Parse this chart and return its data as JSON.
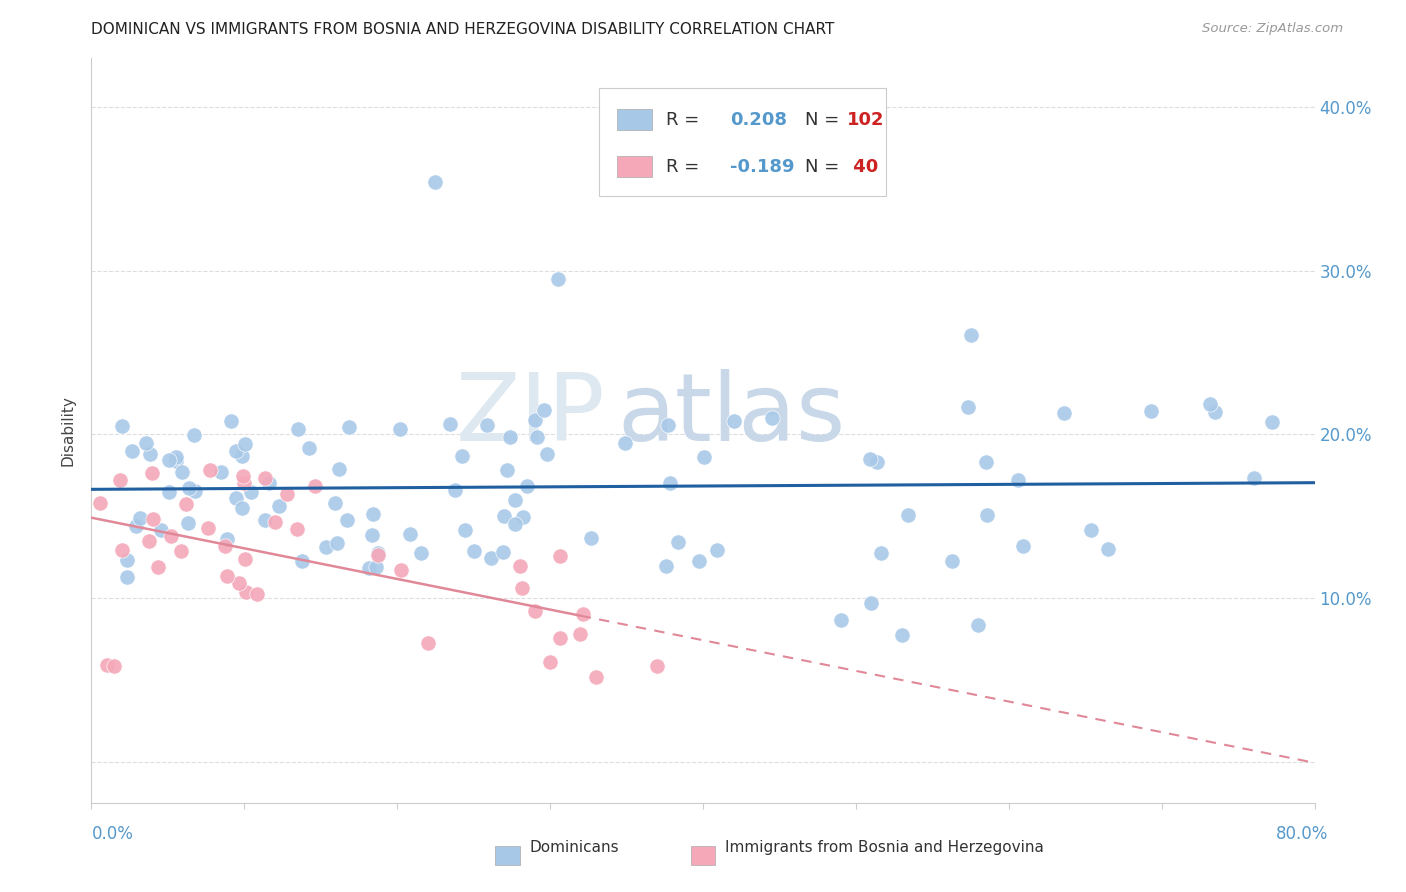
{
  "title": "DOMINICAN VS IMMIGRANTS FROM BOSNIA AND HERZEGOVINA DISABILITY CORRELATION CHART",
  "source": "Source: ZipAtlas.com",
  "ylabel": "Disability",
  "xlim": [
    0.0,
    0.8
  ],
  "ylim": [
    -0.025,
    0.43
  ],
  "yticks": [
    0.0,
    0.1,
    0.2,
    0.3,
    0.4
  ],
  "ytick_labels": [
    "",
    "10.0%",
    "20.0%",
    "30.0%",
    "40.0%"
  ],
  "xticks": [
    0.0,
    0.1,
    0.2,
    0.3,
    0.4,
    0.5,
    0.6,
    0.7,
    0.8
  ],
  "blue_color": "#a8c8e8",
  "pink_color": "#f4a8b8",
  "blue_line_color": "#2060a0",
  "pink_line_color": "#e08898",
  "axis_color": "#5599cc",
  "grid_color": "#dddddd",
  "title_color": "#222222",
  "source_color": "#999999",
  "ylabel_color": "#444444",
  "legend_r_color": "#5599cc",
  "legend_n_color": "#cc2222",
  "watermark_color": "#e5eef5",
  "blue_r": 0.208,
  "pink_r": -0.189,
  "blue_n": 102,
  "pink_n": 40
}
